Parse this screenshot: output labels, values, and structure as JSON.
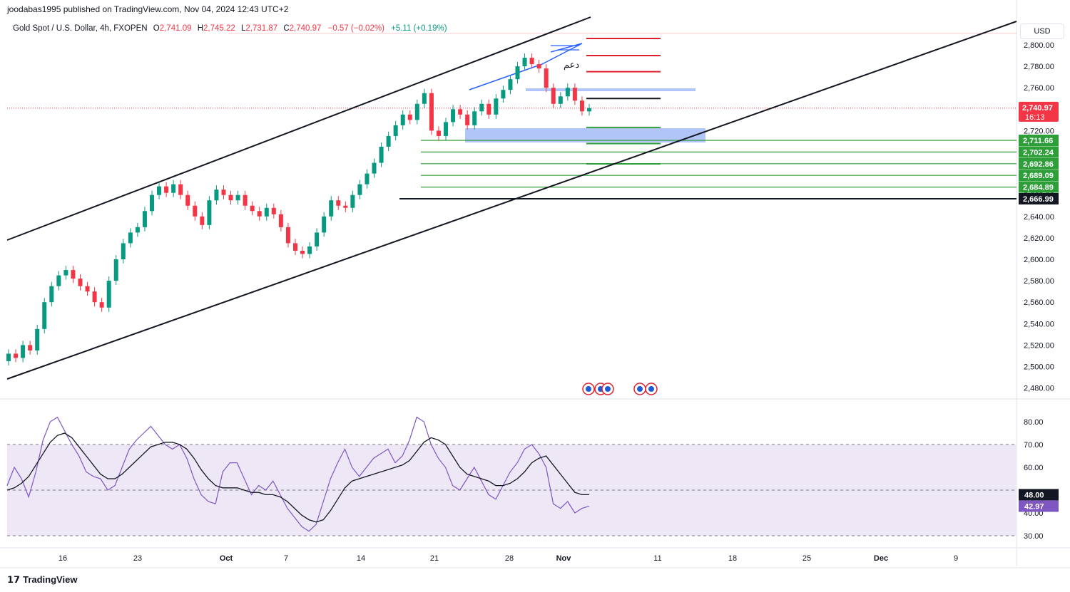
{
  "publisher": "joodabas1995 published on TradingView.com, Nov 04, 2024 12:43 UTC+2",
  "header": {
    "symbol": "Gold Spot / U.S. Dollar, 4h, FXOPEN",
    "o_label": "O",
    "o_value": "2,741.09",
    "h_label": "H",
    "h_value": "2,745.22",
    "l_label": "L",
    "l_value": "2,731.87",
    "c_label": "C",
    "c_value": "2,740.97",
    "change": "−0.57 (−0.02%)",
    "change2": "+5.11 (+0.19%)"
  },
  "currency": "USD",
  "footer_brand": "TradingView",
  "colors": {
    "up": "#089981",
    "down": "#f23645",
    "rsi": "#7e57c2",
    "rsi_bg": "#ede7f6",
    "zone": "#9db6f7",
    "green_line": "#2e9e38",
    "red_line": "#e0202c"
  },
  "chart_data": [
    {
      "type": "candlestick",
      "title": "Gold Spot / U.S. Dollar, 4h, FXOPEN",
      "ylim": [
        2470,
        2810
      ],
      "y_ticks": [
        "2,800.00",
        "2,780.00",
        "2,760.00",
        "2,720.00",
        "2,700.00",
        "2,680.00",
        "2,660.00",
        "2,640.00",
        "2,620.00",
        "2,600.00",
        "2,580.00",
        "2,560.00",
        "2,540.00",
        "2,520.00",
        "2,500.00",
        "2,480.00"
      ],
      "x_ticks": [
        "16",
        "23",
        "Oct",
        "7",
        "14",
        "21",
        "28",
        "Nov",
        "11",
        "18",
        "25",
        "Dec",
        "9"
      ],
      "last_price_label": "2,740.97",
      "countdown": "16:13",
      "price_badges": [
        {
          "label": "2,711.66",
          "value": 2711.66,
          "color": "#2e9e38"
        },
        {
          "label": "2,702.24",
          "value": 2702.24,
          "color": "#2e9e38"
        },
        {
          "label": "2,692.86",
          "value": 2692.86,
          "color": "#2e9e38"
        },
        {
          "label": "2,689.09",
          "value": 2689.09,
          "color": "#2e9e38"
        },
        {
          "label": "2,684.89",
          "value": 2684.89,
          "color": "#2e9e38"
        },
        {
          "label": "2,666.99",
          "value": 2666.99,
          "color": "#131722"
        }
      ],
      "arabic_annotation": "دعم",
      "ohlc_path": [
        [
          2505,
          2512
        ],
        [
          2512,
          2508
        ],
        [
          2508,
          2520
        ],
        [
          2520,
          2515
        ],
        [
          2515,
          2535
        ],
        [
          2535,
          2560
        ],
        [
          2560,
          2575
        ],
        [
          2575,
          2585
        ],
        [
          2585,
          2590
        ],
        [
          2590,
          2582
        ],
        [
          2582,
          2575
        ],
        [
          2575,
          2570
        ],
        [
          2570,
          2560
        ],
        [
          2560,
          2555
        ],
        [
          2555,
          2580
        ],
        [
          2580,
          2600
        ],
        [
          2600,
          2615
        ],
        [
          2615,
          2625
        ],
        [
          2625,
          2630
        ],
        [
          2630,
          2645
        ],
        [
          2645,
          2660
        ],
        [
          2660,
          2668
        ],
        [
          2668,
          2662
        ],
        [
          2662,
          2670
        ],
        [
          2670,
          2660
        ],
        [
          2660,
          2650
        ],
        [
          2650,
          2640
        ],
        [
          2640,
          2632
        ],
        [
          2632,
          2655
        ],
        [
          2655,
          2665
        ],
        [
          2665,
          2660
        ],
        [
          2660,
          2655
        ],
        [
          2655,
          2660
        ],
        [
          2660,
          2650
        ],
        [
          2650,
          2645
        ],
        [
          2645,
          2640
        ],
        [
          2640,
          2648
        ],
        [
          2648,
          2642
        ],
        [
          2642,
          2630
        ],
        [
          2630,
          2615
        ],
        [
          2615,
          2608
        ],
        [
          2608,
          2605
        ],
        [
          2605,
          2612
        ],
        [
          2612,
          2625
        ],
        [
          2625,
          2640
        ],
        [
          2640,
          2655
        ],
        [
          2655,
          2650
        ],
        [
          2650,
          2648
        ],
        [
          2648,
          2660
        ],
        [
          2660,
          2670
        ],
        [
          2670,
          2680
        ],
        [
          2680,
          2690
        ],
        [
          2690,
          2705
        ],
        [
          2705,
          2715
        ],
        [
          2715,
          2725
        ],
        [
          2725,
          2735
        ],
        [
          2735,
          2730
        ],
        [
          2730,
          2745
        ],
        [
          2745,
          2755
        ],
        [
          2755,
          2720
        ],
        [
          2720,
          2715
        ],
        [
          2715,
          2728
        ],
        [
          2728,
          2740
        ],
        [
          2740,
          2735
        ],
        [
          2735,
          2725
        ],
        [
          2725,
          2738
        ],
        [
          2738,
          2745
        ],
        [
          2745,
          2735
        ],
        [
          2735,
          2750
        ],
        [
          2750,
          2758
        ],
        [
          2758,
          2768
        ],
        [
          2768,
          2780
        ],
        [
          2780,
          2788
        ],
        [
          2788,
          2782
        ],
        [
          2782,
          2778
        ],
        [
          2778,
          2760
        ],
        [
          2760,
          2745
        ],
        [
          2745,
          2752
        ],
        [
          2752,
          2760
        ],
        [
          2760,
          2748
        ],
        [
          2748,
          2738
        ],
        [
          2738,
          2741
        ]
      ],
      "levels": [
        {
          "price": 2806,
          "color": "#e0202c"
        },
        {
          "price": 2790,
          "color": "#e0202c"
        },
        {
          "price": 2775,
          "color": "#e0202c"
        },
        {
          "price": 2750,
          "color": "#131722"
        },
        {
          "price": 2723,
          "color": "#2e9e38"
        },
        {
          "price": 2708,
          "color": "#2e9e38"
        },
        {
          "price": 2689,
          "color": "#2e9e38"
        }
      ],
      "zones": [
        {
          "from": 2708,
          "to": 2720,
          "color": "#9db6f7"
        },
        {
          "from": 2760,
          "to": 2762,
          "color": "#9db6f7"
        }
      ],
      "channel": {
        "upper": [
          [
            -5,
            2616
          ],
          [
            120,
            2806
          ]
        ],
        "lower": [
          [
            -5,
            2490
          ],
          [
            410,
            2800
          ]
        ]
      }
    },
    {
      "type": "line",
      "title": "RSI",
      "ylim": [
        27,
        86
      ],
      "y_ticks": [
        "80.00",
        "70.00",
        "60.00",
        "40.00",
        "30.00"
      ],
      "overbought": 70,
      "oversold": 30,
      "rsi_label": "42.97",
      "ma_label": "48.00",
      "rsi_values": [
        52,
        60,
        55,
        47,
        58,
        72,
        80,
        82,
        76,
        70,
        65,
        58,
        56,
        55,
        50,
        52,
        60,
        68,
        72,
        75,
        78,
        74,
        70,
        68,
        70,
        64,
        55,
        48,
        45,
        44,
        58,
        62,
        62,
        55,
        48,
        52,
        50,
        54,
        48,
        42,
        38,
        34,
        32,
        35,
        45,
        55,
        62,
        68,
        60,
        56,
        60,
        64,
        66,
        68,
        62,
        65,
        72,
        82,
        80,
        70,
        64,
        60,
        52,
        50,
        55,
        60,
        54,
        48,
        46,
        52,
        58,
        62,
        68,
        70,
        66,
        60,
        44,
        42,
        45,
        40,
        42,
        43
      ],
      "ma_values": [
        50,
        51,
        53,
        56,
        61,
        66,
        71,
        74,
        75,
        73,
        69,
        65,
        61,
        57,
        55,
        55,
        57,
        60,
        63,
        66,
        69,
        70,
        71,
        71,
        70,
        68,
        64,
        59,
        55,
        52,
        51,
        51,
        51,
        50,
        49,
        49,
        48,
        48,
        47,
        45,
        42,
        39,
        37,
        36,
        37,
        41,
        46,
        51,
        54,
        55,
        56,
        57,
        58,
        59,
        60,
        61,
        63,
        67,
        71,
        73,
        72,
        70,
        65,
        60,
        57,
        56,
        55,
        54,
        52,
        52,
        53,
        55,
        58,
        62,
        64,
        65,
        61,
        57,
        53,
        49,
        48,
        48
      ]
    }
  ]
}
